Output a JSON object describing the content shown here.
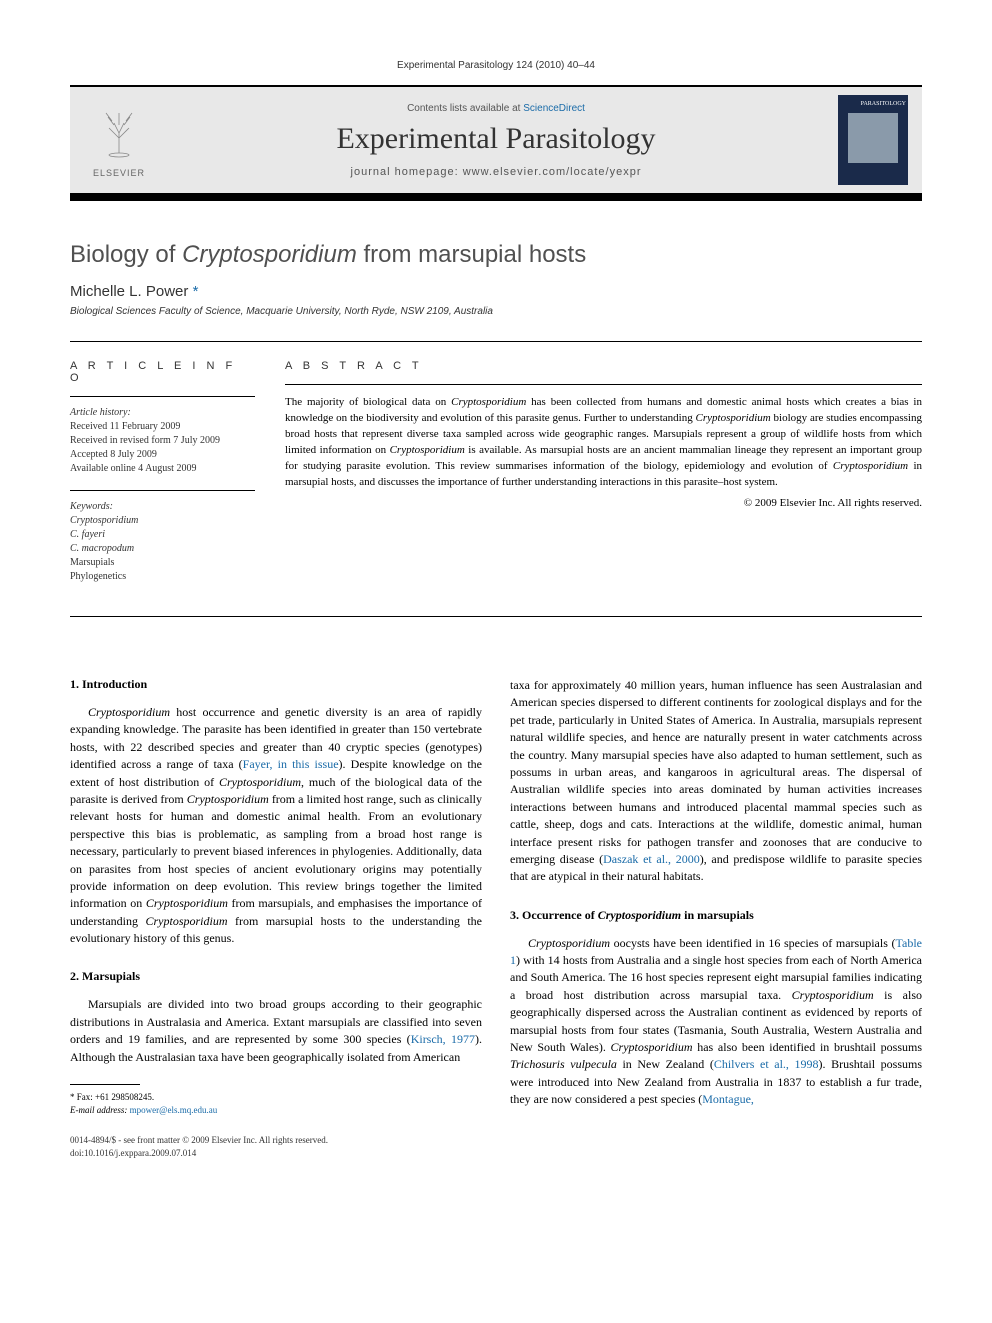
{
  "header": {
    "citation": "Experimental Parasitology 124 (2010) 40–44"
  },
  "masthead": {
    "publisher": "ELSEVIER",
    "contents_prefix": "Contents lists available at ",
    "contents_link": "ScienceDirect",
    "journal": "Experimental Parasitology",
    "homepage_prefix": "journal homepage: ",
    "homepage_url": "www.elsevier.com/locate/yexpr",
    "cover_label": "PARASITOLOGY"
  },
  "title": {
    "prefix": "Biology of ",
    "italic": "Cryptosporidium",
    "suffix": " from marsupial hosts"
  },
  "author": {
    "name": "Michelle L. Power",
    "footnote_marker": "*"
  },
  "affiliation": "Biological Sciences Faculty of Science, Macquarie University, North Ryde, NSW 2109, Australia",
  "article_info": {
    "heading": "A R T I C L E   I N F O",
    "history_label": "Article history:",
    "history_lines": [
      "Received 11 February 2009",
      "Received in revised form 7 July 2009",
      "Accepted 8 July 2009",
      "Available online 4 August 2009"
    ],
    "keywords_label": "Keywords:",
    "keywords": [
      {
        "text": "Cryptosporidium",
        "italic": true
      },
      {
        "text": "C. fayeri",
        "italic": true
      },
      {
        "text": "C. macropodum",
        "italic": true
      },
      {
        "text": "Marsupials",
        "italic": false
      },
      {
        "text": "Phylogenetics",
        "italic": false
      }
    ]
  },
  "abstract": {
    "heading": "A B S T R A C T",
    "text_parts": [
      {
        "t": "The majority of biological data on ",
        "i": false
      },
      {
        "t": "Cryptosporidium",
        "i": true
      },
      {
        "t": " has been collected from humans and domestic animal hosts which creates a bias in knowledge on the biodiversity and evolution of this parasite genus. Further to understanding ",
        "i": false
      },
      {
        "t": "Cryptosporidium",
        "i": true
      },
      {
        "t": " biology are studies encompassing broad hosts that represent diverse taxa sampled across wide geographic ranges. Marsupials represent a group of wildlife hosts from which limited information on ",
        "i": false
      },
      {
        "t": "Cryptosporidium",
        "i": true
      },
      {
        "t": " is available. As marsupial hosts are an ancient mammalian lineage they represent an important group for studying parasite evolution. This review summarises information of the biology, epidemiology and evolution of ",
        "i": false
      },
      {
        "t": "Cryptosporidium",
        "i": true
      },
      {
        "t": " in marsupial hosts, and discusses the importance of further understanding interactions in this parasite–host system.",
        "i": false
      }
    ],
    "copyright": "© 2009 Elsevier Inc. All rights reserved."
  },
  "sections": {
    "s1_heading": "1. Introduction",
    "s1_parts": [
      {
        "t": "Cryptosporidium",
        "i": true
      },
      {
        "t": " host occurrence and genetic diversity is an area of rapidly expanding knowledge. The parasite has been identified in greater than 150 vertebrate hosts, with 22 described species and greater than 40 cryptic species (genotypes) identified across a range of taxa (",
        "i": false
      },
      {
        "t": "Fayer, in this issue",
        "link": true
      },
      {
        "t": "). Despite knowledge on the extent of host distribution of ",
        "i": false
      },
      {
        "t": "Cryptosporidium",
        "i": true
      },
      {
        "t": ", much of the biological data of the parasite is derived from ",
        "i": false
      },
      {
        "t": "Cryptosporidium",
        "i": true
      },
      {
        "t": " from a limited host range, such as clinically relevant hosts for human and domestic animal health. From an evolutionary perspective this bias is problematic, as sampling from a broad host range is necessary, particularly to prevent biased inferences in phylogenies. Additionally, data on parasites from host species of ancient evolutionary origins may potentially provide information on deep evolution. This review brings together the limited information on ",
        "i": false
      },
      {
        "t": "Cryptosporidium",
        "i": true
      },
      {
        "t": " from marsupials, and emphasises the importance of understanding ",
        "i": false
      },
      {
        "t": "Cryptosporidium",
        "i": true
      },
      {
        "t": " from marsupial hosts to the understanding the evolutionary history of this genus.",
        "i": false
      }
    ],
    "s2_heading": "2. Marsupials",
    "s2_parts": [
      {
        "t": "Marsupials are divided into two broad groups according to their geographic distributions in Australasia and America. Extant marsupials are classified into seven orders and 19 families, and are represented by some 300 species (",
        "i": false
      },
      {
        "t": "Kirsch, 1977",
        "link": true
      },
      {
        "t": "). Although the Australasian taxa have been geographically isolated from American",
        "i": false
      }
    ],
    "s2_cont_parts": [
      {
        "t": "taxa for approximately 40 million years, human influence has seen Australasian and American species dispersed to different continents for zoological displays and for the pet trade, particularly in United States of America. In Australia, marsupials represent natural wildlife species, and hence are naturally present in water catchments across the country. Many marsupial species have also adapted to human settlement, such as possums in urban areas, and kangaroos in agricultural areas. The dispersal of Australian wildlife species into areas dominated by human activities increases interactions between humans and introduced placental mammal species such as cattle, sheep, dogs and cats. Interactions at the wildlife, domestic animal, human interface present risks for pathogen transfer and zoonoses that are conducive to emerging disease (",
        "i": false
      },
      {
        "t": "Daszak et al., 2000",
        "link": true
      },
      {
        "t": "), and predispose wildlife to parasite species that are atypical in their natural habitats.",
        "i": false
      }
    ],
    "s3_heading_prefix": "3. Occurrence of ",
    "s3_heading_italic": "Cryptosporidium",
    "s3_heading_suffix": " in marsupials",
    "s3_parts": [
      {
        "t": "Cryptosporidium",
        "i": true
      },
      {
        "t": " oocysts have been identified in 16 species of marsupials (",
        "i": false
      },
      {
        "t": "Table 1",
        "link": true
      },
      {
        "t": ") with 14 hosts from Australia and a single host species from each of North America and South America. The 16 host species represent eight marsupial families indicating a broad host distribution across marsupial taxa. ",
        "i": false
      },
      {
        "t": "Cryptosporidium",
        "i": true
      },
      {
        "t": " is also geographically dispersed across the Australian continent as evidenced by reports of marsupial hosts from four states (Tasmania, South Australia, Western Australia and New South Wales). ",
        "i": false
      },
      {
        "t": "Cryptosporidium",
        "i": true
      },
      {
        "t": " has also been identified in brushtail possums ",
        "i": false
      },
      {
        "t": "Trichosuris vulpecula",
        "i": true
      },
      {
        "t": " in New Zealand (",
        "i": false
      },
      {
        "t": "Chilvers et al., 1998",
        "link": true
      },
      {
        "t": "). Brushtail possums were introduced into New Zealand from Australia in 1837 to establish a fur trade, they are now considered a pest species (",
        "i": false
      },
      {
        "t": "Montague,",
        "link": true
      }
    ]
  },
  "footnotes": {
    "fax_label": "* Fax: +61 298508245.",
    "email_label": "E-mail address:",
    "email": "mpower@els.mq.edu.au"
  },
  "footer": {
    "issn": "0014-4894/$ - see front matter © 2009 Elsevier Inc. All rights reserved.",
    "doi": "doi:10.1016/j.exppara.2009.07.014"
  },
  "colors": {
    "link": "#1a6ba8",
    "masthead_bg": "#e8e8e8",
    "text": "#000000",
    "heading_gray": "#505050"
  }
}
